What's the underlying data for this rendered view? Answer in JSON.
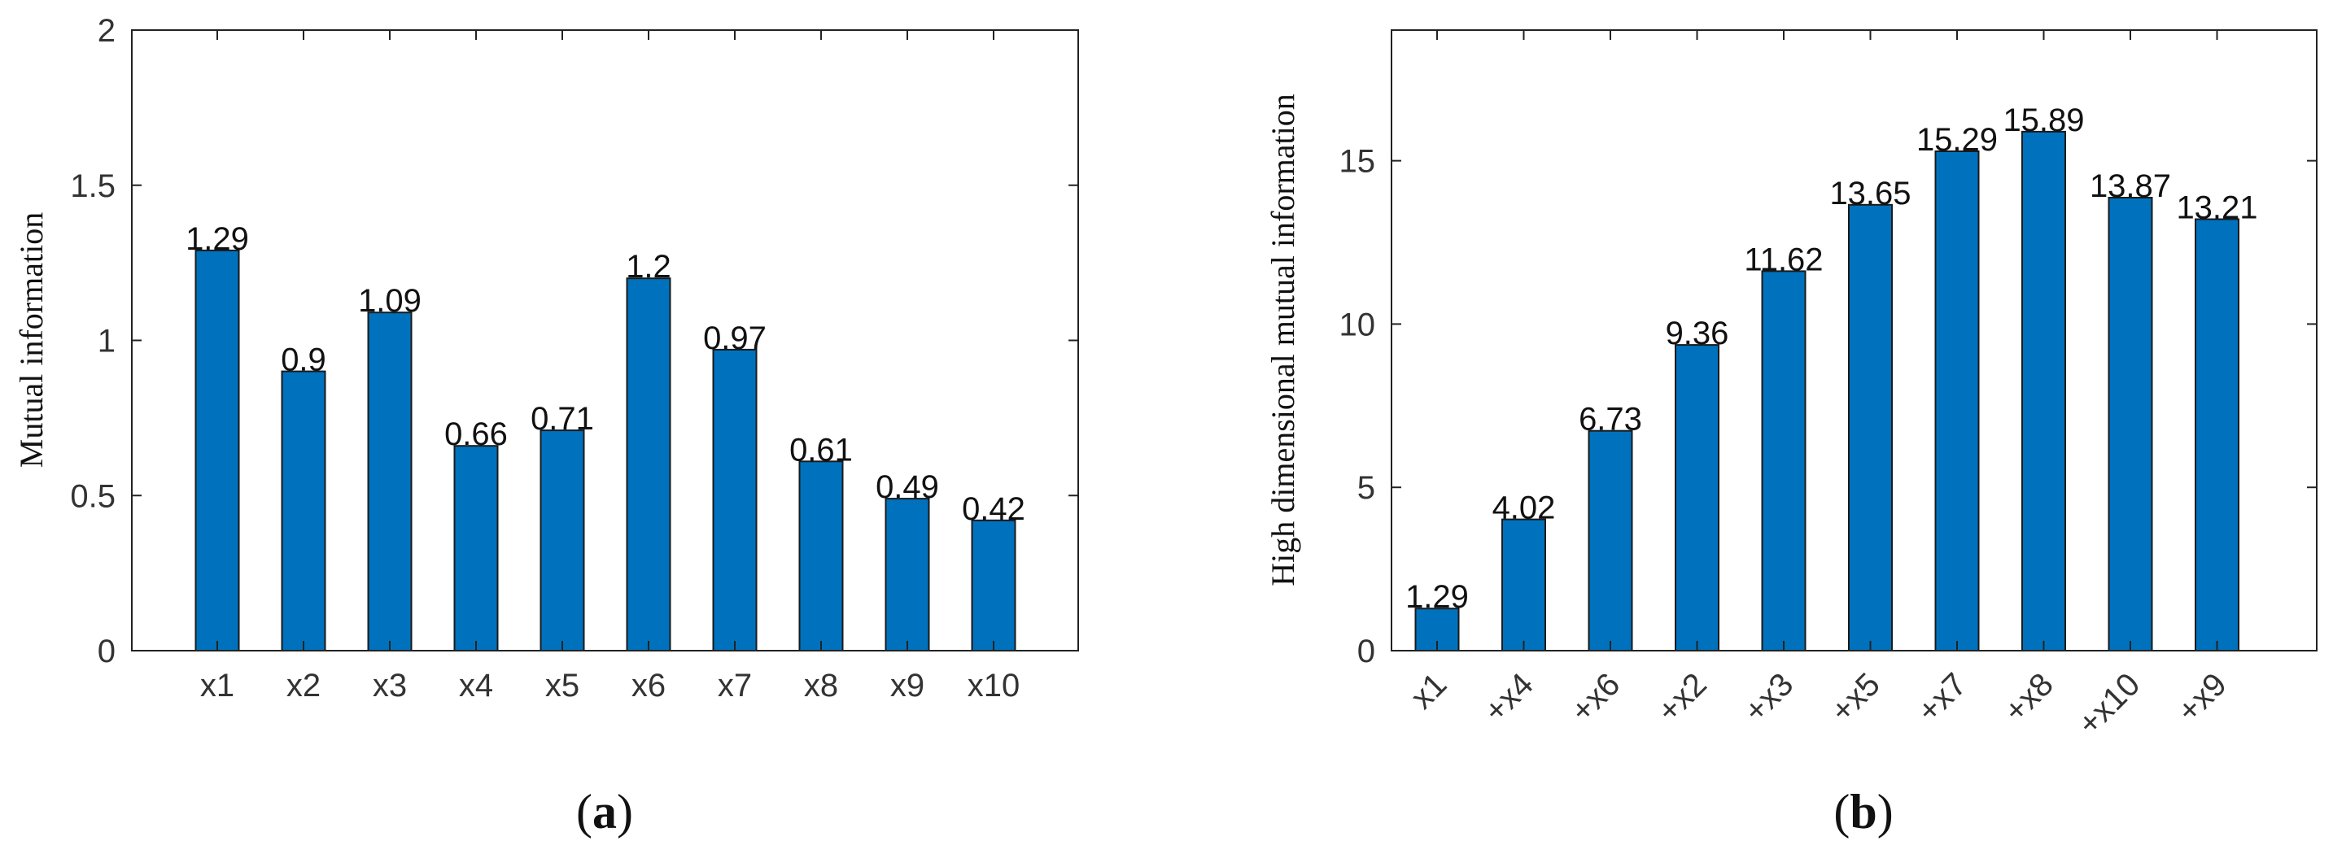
{
  "chart_data": [
    {
      "type": "bar",
      "panel": "a",
      "caption_letter": "a",
      "title": "",
      "xlabel": "",
      "ylabel": "Mutual information",
      "categories": [
        "x1",
        "x2",
        "x3",
        "x4",
        "x5",
        "x6",
        "x7",
        "x8",
        "x9",
        "x10"
      ],
      "values": [
        1.29,
        0.9,
        1.09,
        0.66,
        0.71,
        1.2,
        0.97,
        0.61,
        0.49,
        0.42
      ],
      "value_labels": [
        "1.29",
        "0.9",
        "1.09",
        "0.66",
        "0.71",
        "1.2",
        "0.97",
        "0.61",
        "0.49",
        "0.42"
      ],
      "ylim": [
        0,
        2
      ],
      "yticks": [
        0,
        0.5,
        1,
        1.5,
        2
      ],
      "ytick_labels": [
        "0",
        "0.5",
        "1",
        "1.5",
        "2"
      ],
      "xtick_rotation": 0,
      "bar_color": "#0072BD",
      "grid": false
    },
    {
      "type": "bar",
      "panel": "b",
      "caption_letter": "b",
      "title": "",
      "xlabel": "",
      "ylabel": "High dimensional mutual information",
      "categories": [
        "x1",
        "+x4",
        "+x6",
        "+x2",
        "+x3",
        "+x5",
        "+x7",
        "+x8",
        "+x10",
        "+x9"
      ],
      "values": [
        1.29,
        4.02,
        6.73,
        9.36,
        11.62,
        13.65,
        15.29,
        15.89,
        13.87,
        13.21
      ],
      "value_labels": [
        "1.29",
        "4.02",
        "6.73",
        "9.36",
        "11.62",
        "13.65",
        "15.29",
        "15.89",
        "13.87",
        "13.21"
      ],
      "ylim": [
        0,
        19
      ],
      "yticks": [
        0,
        5,
        10,
        15
      ],
      "ytick_labels": [
        "0",
        "5",
        "10",
        "15"
      ],
      "xtick_rotation": -45,
      "bar_color": "#0072BD",
      "grid": false
    }
  ]
}
